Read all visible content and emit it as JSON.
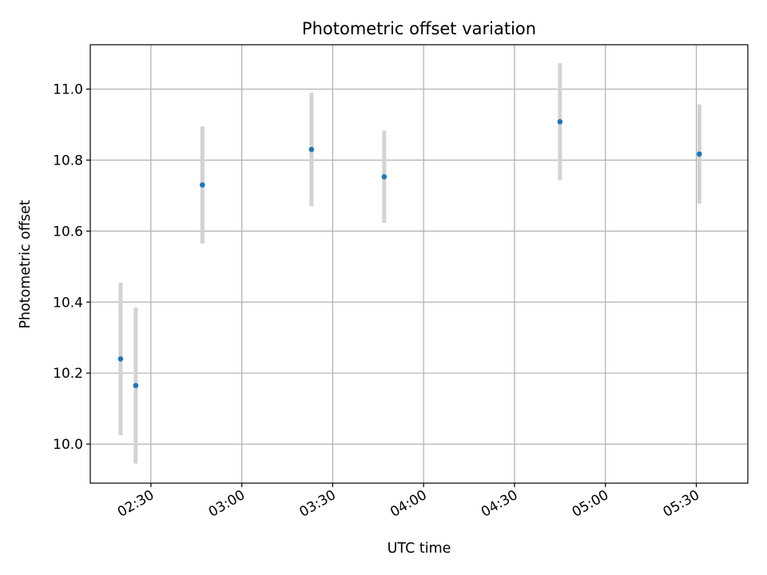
{
  "chart_data": {
    "type": "scatter",
    "title": "Photometric offset variation",
    "xlabel": "UTC time",
    "ylabel": "Photometric offset",
    "x_type": "time",
    "x_range": [
      "02:10",
      "05:47"
    ],
    "ylim": [
      9.89,
      11.125
    ],
    "x_ticks": [
      "02:30",
      "03:00",
      "03:30",
      "04:00",
      "04:30",
      "05:00",
      "05:30"
    ],
    "y_ticks": [
      10.0,
      10.2,
      10.4,
      10.6,
      10.8,
      11.0
    ],
    "y_tick_labels": [
      "10.0",
      "10.2",
      "10.4",
      "10.6",
      "10.8",
      "11.0"
    ],
    "grid": true,
    "colors": {
      "marker": "#1f77b4",
      "errorbar": "#d3d3d3",
      "grid": "#b0b0b0"
    },
    "series": [
      {
        "points": [
          {
            "x": "02:20",
            "y": 10.24,
            "err": 0.215
          },
          {
            "x": "02:25",
            "y": 10.165,
            "err": 0.22
          },
          {
            "x": "02:47",
            "y": 10.73,
            "err": 0.165
          },
          {
            "x": "03:23",
            "y": 10.83,
            "err": 0.16
          },
          {
            "x": "03:47",
            "y": 10.753,
            "err": 0.13
          },
          {
            "x": "04:45",
            "y": 10.908,
            "err": 0.165
          },
          {
            "x": "05:31",
            "y": 10.817,
            "err": 0.14
          }
        ]
      }
    ]
  }
}
